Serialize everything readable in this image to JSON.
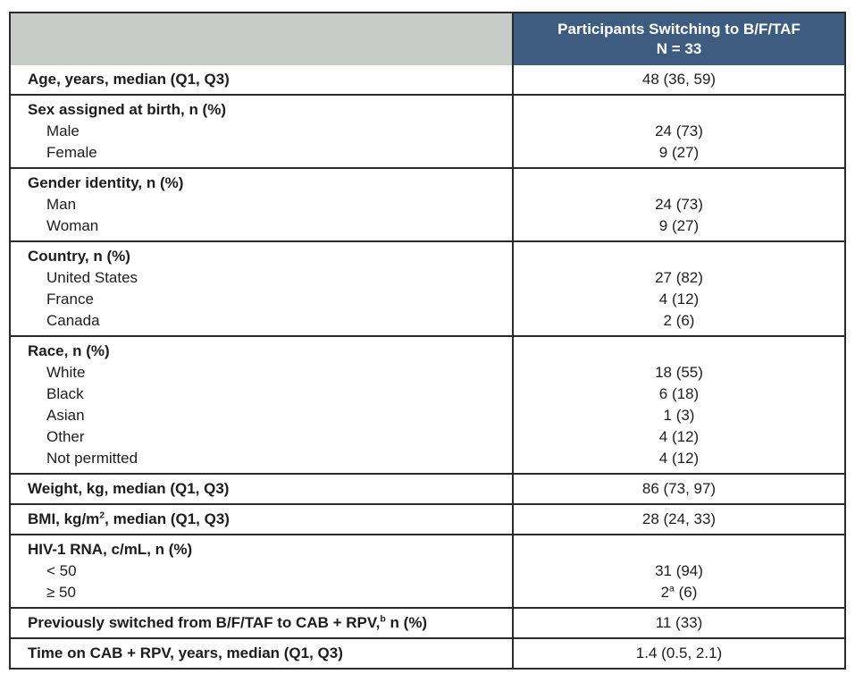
{
  "table": {
    "colors": {
      "header_left_bg": "#c7cbc8",
      "header_right_bg": "#3e5c80",
      "header_text": "#ffffff",
      "border": "#2a2a2a",
      "body_text": "#1d1d1d"
    },
    "header": {
      "left_label": "",
      "right_title_line1": "Participants Switching to B/F/TAF",
      "right_title_line2": "N = 33"
    },
    "rows": [
      {
        "kind": "single",
        "label": "Age, years, median (Q1, Q3)",
        "value": "48 (36, 59)"
      },
      {
        "kind": "group",
        "label": "Sex assigned at birth, n (%)",
        "items": [
          {
            "label": "Male",
            "value": "24 (73)"
          },
          {
            "label": "Female",
            "value": "9 (27)"
          }
        ]
      },
      {
        "kind": "group",
        "label": "Gender identity, n (%)",
        "items": [
          {
            "label": "Man",
            "value": "24 (73)"
          },
          {
            "label": "Woman",
            "value": "9 (27)"
          }
        ]
      },
      {
        "kind": "group",
        "label": "Country, n (%)",
        "items": [
          {
            "label": "United States",
            "value": "27 (82)"
          },
          {
            "label": "France",
            "value": "4 (12)"
          },
          {
            "label": "Canada",
            "value": "2 (6)"
          }
        ]
      },
      {
        "kind": "group",
        "label": "Race, n (%)",
        "items": [
          {
            "label": "White",
            "value": "18 (55)"
          },
          {
            "label": "Black",
            "value": "6 (18)"
          },
          {
            "label": "Asian",
            "value": "1 (3)"
          },
          {
            "label": "Other",
            "value": "4 (12)"
          },
          {
            "label": "Not permitted",
            "value": "4 (12)"
          }
        ]
      },
      {
        "kind": "single",
        "label": "Weight, kg, median (Q1, Q3)",
        "value": "86 (73, 97)"
      },
      {
        "kind": "single",
        "label_parts": [
          {
            "text": "BMI, kg/m"
          },
          {
            "text": "2",
            "sup": true
          },
          {
            "text": ", median (Q1, Q3)"
          }
        ],
        "value": "28 (24, 33)"
      },
      {
        "kind": "group",
        "label": "HIV-1 RNA, c/mL, n (%)",
        "items": [
          {
            "label": "< 50",
            "value": "31 (94)"
          },
          {
            "label": "≥ 50",
            "value_parts": [
              {
                "text": "2"
              },
              {
                "text": "a",
                "sup": true
              },
              {
                "text": " (6)"
              }
            ]
          }
        ]
      },
      {
        "kind": "single",
        "label_parts": [
          {
            "text": "Previously switched from B/F/TAF to CAB + RPV,"
          },
          {
            "text": "b",
            "sup": true
          },
          {
            "text": " n (%)"
          }
        ],
        "value": "11 (33)"
      },
      {
        "kind": "single",
        "label": "Time on CAB + RPV, years, median (Q1, Q3)",
        "value": "1.4 (0.5, 2.1)"
      }
    ]
  }
}
